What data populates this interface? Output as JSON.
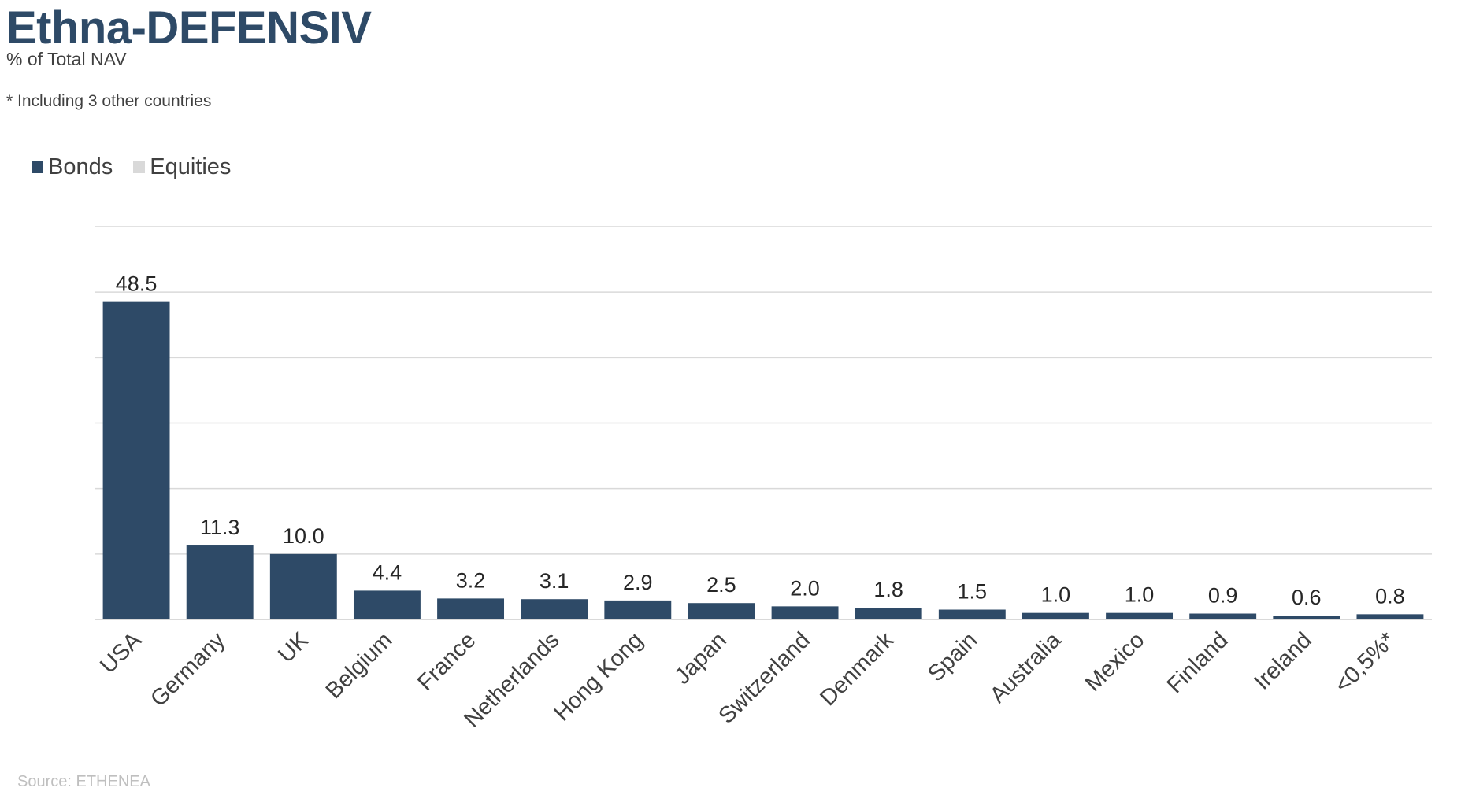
{
  "header": {
    "title": "Ethna-DEFENSIV",
    "subtitle": "% of Total NAV",
    "footnote": "* Including 3 other countries"
  },
  "legend": {
    "items": [
      {
        "label": "Bonds",
        "color": "#2e4a67"
      },
      {
        "label": "Equities",
        "color": "#d9d9d9"
      }
    ]
  },
  "footer": {
    "source": "Source: ETHENEA"
  },
  "colors": {
    "bonds": "#2e4a67",
    "equities": "#d9d9d9",
    "title": "#2e4a67",
    "gridline": "#d9d9d9",
    "source_text": "#bfbfbf"
  },
  "chart_data": {
    "type": "bar",
    "title": "Ethna-DEFENSIV",
    "subtitle": "% of Total NAV",
    "categories": [
      "USA",
      "Germany",
      "UK",
      "Belgium",
      "France",
      "Netherlands",
      "Hong Kong",
      "Japan",
      "Switzerland",
      "Denmark",
      "Spain",
      "Australia",
      "Mexico",
      "Finland",
      "Ireland",
      "<0,5%*"
    ],
    "series": [
      {
        "name": "Bonds",
        "color": "#2e4a67",
        "values": [
          48.5,
          11.3,
          10.0,
          4.4,
          3.2,
          3.1,
          2.9,
          2.5,
          2.0,
          1.8,
          1.5,
          1.0,
          1.0,
          0.9,
          0.6,
          0.8
        ]
      },
      {
        "name": "Equities",
        "color": "#d9d9d9",
        "values": [
          0,
          0,
          0,
          0,
          0,
          0,
          0,
          0,
          0,
          0,
          0,
          0,
          0,
          0,
          0,
          0
        ]
      }
    ],
    "data_labels": [
      "48.5",
      "11.3",
      "10.0",
      "4.4",
      "3.2",
      "3.1",
      "2.9",
      "2.5",
      "2.0",
      "1.8",
      "1.5",
      "1.0",
      "1.0",
      "0.9",
      "0.6",
      "0.8"
    ],
    "ylim": [
      0,
      60
    ],
    "gridline_step": 10,
    "grid": true,
    "y_tick_labels_visible": false,
    "legend_position": "top-left",
    "xlabel": "",
    "ylabel": ""
  }
}
